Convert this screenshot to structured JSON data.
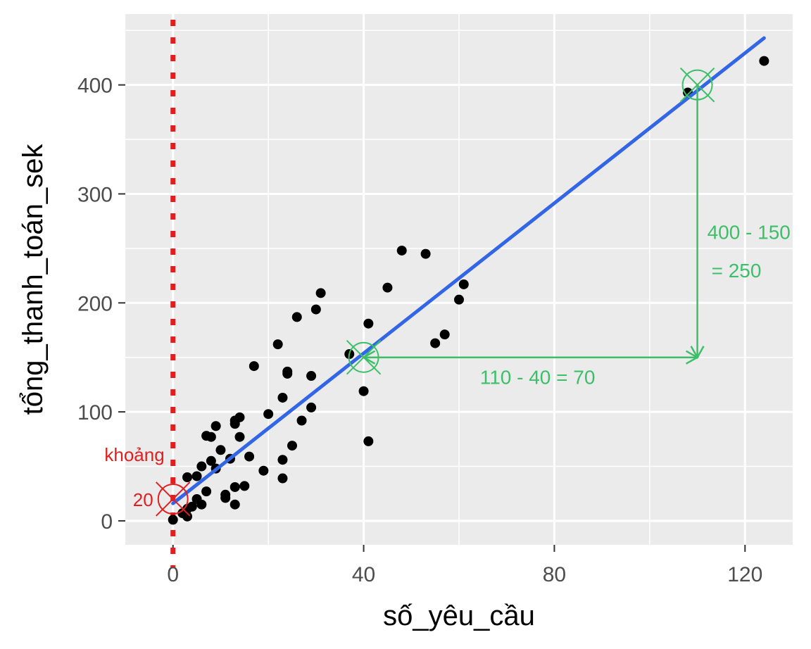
{
  "chart_data": {
    "type": "scatter",
    "title": "",
    "xlabel": "số_yêu_cầu",
    "ylabel": "tổng_thanh_toán_sek",
    "xlim": [
      -10,
      130
    ],
    "ylim": [
      -22,
      465
    ],
    "x_ticks": [
      0,
      40,
      80,
      120
    ],
    "y_ticks": [
      0,
      100,
      200,
      300,
      400
    ],
    "x_tick_labels": [
      "0",
      "40",
      "80",
      "120"
    ],
    "y_tick_labels": [
      "0",
      "100",
      "200",
      "300",
      "400"
    ],
    "grid": true,
    "panel_color": "#ebebeb",
    "point_color": "#000000",
    "line_color": "#3366e6",
    "annotation_green": "#3dbf6a",
    "annotation_red": "#e02020",
    "points": [
      {
        "x": 0,
        "y": 1
      },
      {
        "x": 2,
        "y": 7
      },
      {
        "x": 3,
        "y": 4
      },
      {
        "x": 3,
        "y": 11
      },
      {
        "x": 4,
        "y": 13
      },
      {
        "x": 3,
        "y": 40
      },
      {
        "x": 5,
        "y": 41
      },
      {
        "x": 5,
        "y": 20
      },
      {
        "x": 6,
        "y": 15
      },
      {
        "x": 6,
        "y": 50
      },
      {
        "x": 7,
        "y": 27
      },
      {
        "x": 7,
        "y": 78
      },
      {
        "x": 8,
        "y": 77
      },
      {
        "x": 8,
        "y": 55
      },
      {
        "x": 9,
        "y": 48
      },
      {
        "x": 9,
        "y": 87
      },
      {
        "x": 10,
        "y": 65
      },
      {
        "x": 11,
        "y": 21
      },
      {
        "x": 11,
        "y": 24
      },
      {
        "x": 12,
        "y": 57
      },
      {
        "x": 13,
        "y": 31
      },
      {
        "x": 13,
        "y": 15
      },
      {
        "x": 13,
        "y": 92
      },
      {
        "x": 13,
        "y": 89
      },
      {
        "x": 14,
        "y": 77
      },
      {
        "x": 14,
        "y": 95
      },
      {
        "x": 15,
        "y": 32
      },
      {
        "x": 16,
        "y": 59
      },
      {
        "x": 17,
        "y": 142
      },
      {
        "x": 19,
        "y": 46
      },
      {
        "x": 20,
        "y": 98
      },
      {
        "x": 22,
        "y": 162
      },
      {
        "x": 23,
        "y": 113
      },
      {
        "x": 23,
        "y": 56
      },
      {
        "x": 23,
        "y": 39
      },
      {
        "x": 24,
        "y": 137
      },
      {
        "x": 24,
        "y": 135
      },
      {
        "x": 25,
        "y": 69
      },
      {
        "x": 26,
        "y": 187
      },
      {
        "x": 27,
        "y": 92
      },
      {
        "x": 29,
        "y": 133
      },
      {
        "x": 29,
        "y": 104
      },
      {
        "x": 30,
        "y": 194
      },
      {
        "x": 31,
        "y": 209
      },
      {
        "x": 37,
        "y": 153
      },
      {
        "x": 40,
        "y": 119
      },
      {
        "x": 41,
        "y": 181
      },
      {
        "x": 41,
        "y": 73
      },
      {
        "x": 45,
        "y": 214
      },
      {
        "x": 48,
        "y": 248
      },
      {
        "x": 53,
        "y": 245
      },
      {
        "x": 55,
        "y": 163
      },
      {
        "x": 57,
        "y": 171
      },
      {
        "x": 60,
        "y": 203
      },
      {
        "x": 61,
        "y": 217
      },
      {
        "x": 108,
        "y": 393
      },
      {
        "x": 124,
        "y": 422
      }
    ],
    "fit_line": {
      "x": [
        0,
        124
      ],
      "y": [
        16,
        443
      ]
    },
    "vline_x": 0,
    "annotations": {
      "intercept": {
        "x": 0,
        "y": 20,
        "label_line1": "khoảng",
        "label_line2": "20"
      },
      "point_a": {
        "x": 40,
        "y": 150
      },
      "point_b": {
        "x": 110,
        "y": 400
      },
      "run_label": "110 - 40 = 70",
      "rise_label_line1": "400 - 150",
      "rise_label_line2": "= 250"
    }
  }
}
